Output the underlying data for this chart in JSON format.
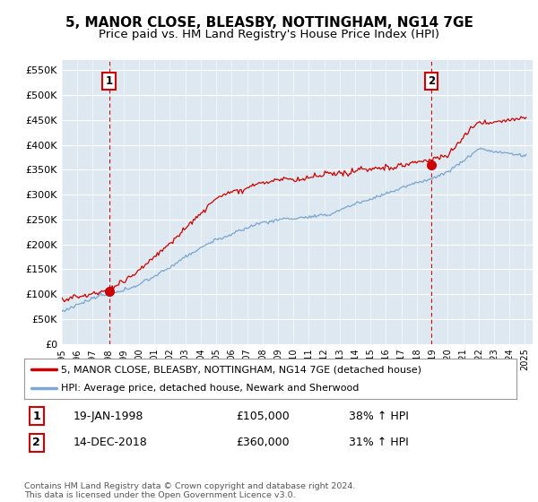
{
  "title": "5, MANOR CLOSE, BLEASBY, NOTTINGHAM, NG14 7GE",
  "subtitle": "Price paid vs. HM Land Registry's House Price Index (HPI)",
  "ylim": [
    0,
    570000
  ],
  "yticks": [
    0,
    50000,
    100000,
    150000,
    200000,
    250000,
    300000,
    350000,
    400000,
    450000,
    500000,
    550000
  ],
  "ytick_labels": [
    "£0",
    "£50K",
    "£100K",
    "£150K",
    "£200K",
    "£250K",
    "£300K",
    "£350K",
    "£400K",
    "£450K",
    "£500K",
    "£550K"
  ],
  "sale1_date": 1998.05,
  "sale1_price": 105000,
  "sale1_label": "1",
  "sale2_date": 2018.96,
  "sale2_price": 360000,
  "sale2_label": "2",
  "sale1_info": "19-JAN-1998",
  "sale1_price_str": "£105,000",
  "sale1_hpi": "38% ↑ HPI",
  "sale2_info": "14-DEC-2018",
  "sale2_price_str": "£360,000",
  "sale2_hpi": "31% ↑ HPI",
  "legend_line1": "5, MANOR CLOSE, BLEASBY, NOTTINGHAM, NG14 7GE (detached house)",
  "legend_line2": "HPI: Average price, detached house, Newark and Sherwood",
  "copyright": "Contains HM Land Registry data © Crown copyright and database right 2024.\nThis data is licensed under the Open Government Licence v3.0.",
  "line_color_red": "#cc0000",
  "line_color_blue": "#6699cc",
  "vline_color": "#cc0000",
  "bg_color": "#ffffff",
  "plot_bg_color": "#dde8f0",
  "grid_color": "#ffffff",
  "title_fontsize": 11,
  "subtitle_fontsize": 9.5
}
